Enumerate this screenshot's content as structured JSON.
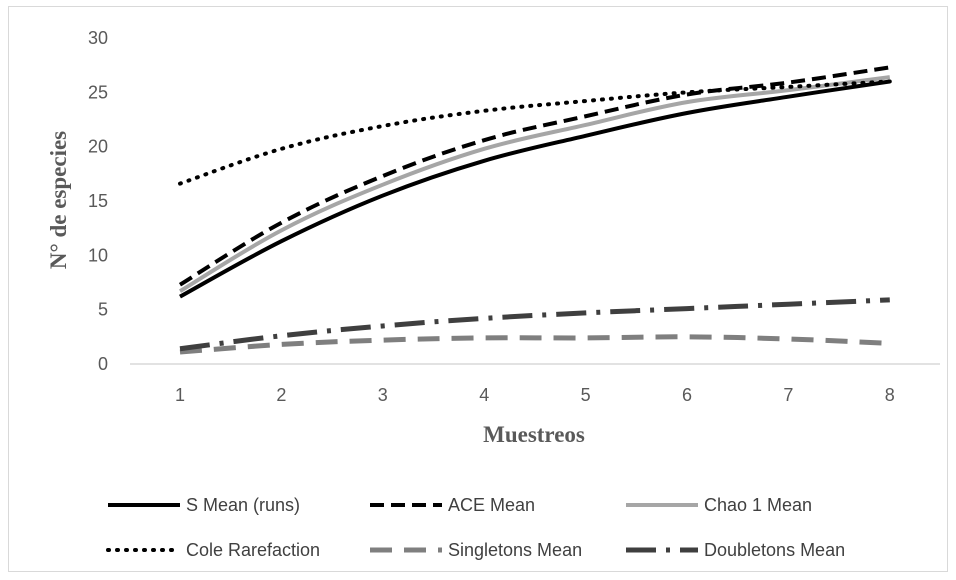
{
  "chart_data": {
    "type": "line",
    "xlabel": "Muestreos",
    "ylabel": "N° de especies",
    "ylim": [
      0,
      30
    ],
    "yticks": [
      "0",
      "5",
      "10",
      "15",
      "20",
      "25",
      "30"
    ],
    "categories": [
      "1",
      "2",
      "3",
      "4",
      "5",
      "6",
      "7",
      "8"
    ],
    "grid": false,
    "legend_position": "bottom",
    "series": [
      {
        "name": "S Mean (runs)",
        "values": [
          6.2,
          11.3,
          15.5,
          18.7,
          21.0,
          23.1,
          24.6,
          26.0
        ],
        "color": "#000000",
        "dash": "solid",
        "width": 4
      },
      {
        "name": "ACE Mean",
        "values": [
          7.3,
          13.0,
          17.3,
          20.6,
          22.8,
          24.8,
          25.9,
          27.3
        ],
        "color": "#000000",
        "dash": "dashed",
        "width": 4
      },
      {
        "name": "Chao 1 Mean",
        "values": [
          6.7,
          12.3,
          16.5,
          19.8,
          22.0,
          24.1,
          25.2,
          26.4
        ],
        "color": "#a6a6a6",
        "dash": "solid",
        "width": 4
      },
      {
        "name": "Cole Rarefaction",
        "values": [
          16.6,
          19.8,
          21.9,
          23.3,
          24.2,
          25.0,
          25.5,
          26.0
        ],
        "color": "#000000",
        "dash": "dotted",
        "width": 4
      },
      {
        "name": "Singletons Mean",
        "values": [
          1.1,
          1.8,
          2.2,
          2.4,
          2.4,
          2.5,
          2.3,
          1.9
        ],
        "color": "#7f7f7f",
        "dash": "longdash",
        "width": 5
      },
      {
        "name": "Doubletons Mean",
        "values": [
          1.4,
          2.6,
          3.5,
          4.2,
          4.7,
          5.1,
          5.5,
          5.9
        ],
        "color": "#3f3f3f",
        "dash": "dashdot",
        "width": 5
      }
    ]
  }
}
